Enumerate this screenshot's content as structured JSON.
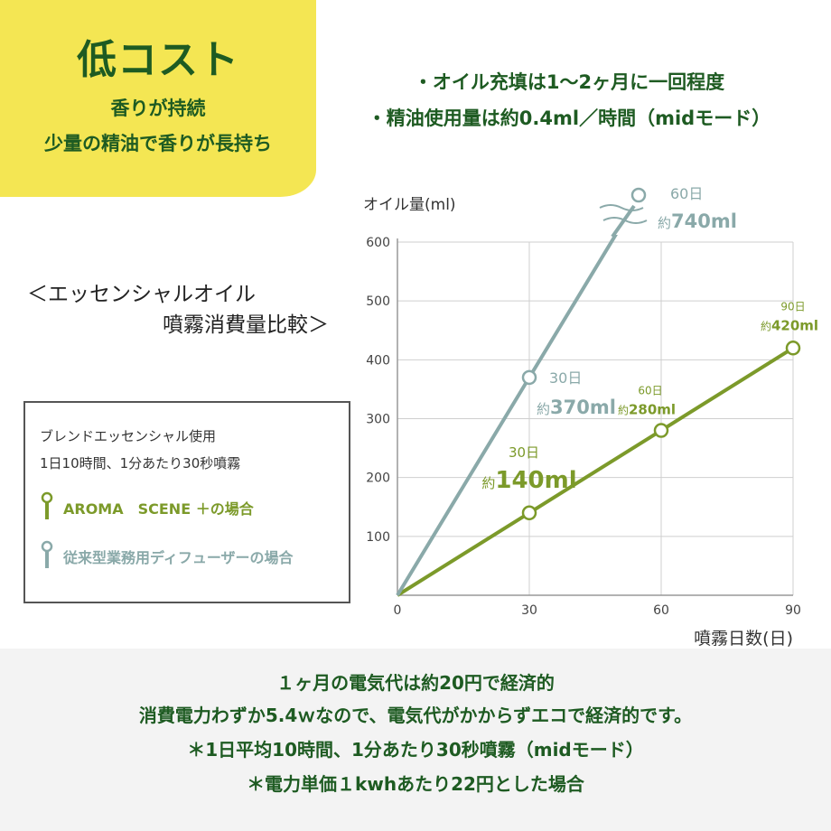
{
  "badge": {
    "title": "低コスト",
    "line1": "香りが持続",
    "line2": "少量の精油で香りが長持ち"
  },
  "notes": [
    "・オイル充填は1〜2ヶ月に一回程度",
    "・精油使用量は約0.4ml／時間（midモード）"
  ],
  "chart_heading": {
    "line1": "＜エッセンシャルオイル",
    "line2": "噴霧消費量比較＞"
  },
  "legend": {
    "line1": "ブレンドエッセンシャル使用",
    "line2": "1日10時間、1分あたり30秒噴霧",
    "items": [
      {
        "label": "AROMA　SCENE ＋の場合",
        "color": "#7c9a2a"
      },
      {
        "label": "従来型業務用ディフューザーの場合",
        "color": "#8aa9a9"
      }
    ]
  },
  "chart_data": {
    "type": "line",
    "ylabel": "オイル量(ml)",
    "xlabel": "噴霧日数(日)",
    "xlim": [
      0,
      90
    ],
    "ylim": [
      0,
      600
    ],
    "x_ticks": [
      0,
      30,
      60,
      90
    ],
    "y_ticks": [
      100,
      200,
      300,
      400,
      500,
      600
    ],
    "grid": true,
    "series": [
      {
        "name": "AROMA　SCENE ＋の場合",
        "color": "#7c9a2a",
        "points": [
          {
            "x": 0,
            "y": 0
          },
          {
            "x": 30,
            "y": 140,
            "day_label": "30日",
            "prefix": "約",
            "value_label": "140ml"
          },
          {
            "x": 60,
            "y": 280,
            "day_label": "60日",
            "prefix": "約",
            "value_label": "280ml"
          },
          {
            "x": 90,
            "y": 420,
            "day_label": "90日",
            "prefix": "約",
            "value_label": "420ml"
          }
        ]
      },
      {
        "name": "従来型業務用ディフューザーの場合",
        "color": "#8aa9a9",
        "points": [
          {
            "x": 0,
            "y": 0
          },
          {
            "x": 30,
            "y": 370,
            "day_label": "30日",
            "prefix": "約",
            "value_label": "370ml"
          },
          {
            "x": 60,
            "y": 740,
            "day_label": "60日",
            "prefix": "約",
            "value_label": "740ml"
          }
        ]
      }
    ]
  },
  "footer": {
    "line1": "１ヶ月の電気代は約20円で経済的",
    "line2": "消費電力わずか5.4ｗなので、電気代がかからずエコで経済的です。",
    "line3": "＊1日平均10時間、1分あたり30秒噴霧（midモード）",
    "line4": "＊電力単価１kwhあたり22円とした場合"
  }
}
